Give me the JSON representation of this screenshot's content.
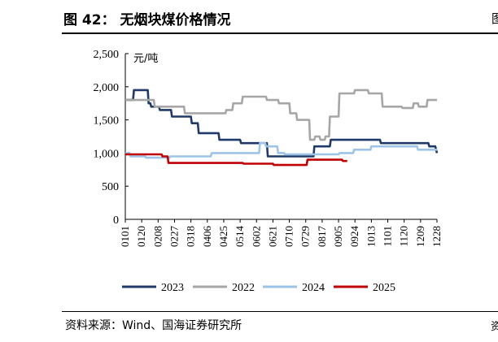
{
  "figure": {
    "title": "图 42：   无烟块煤价格情况",
    "source": "资料来源：Wind、国海证券研究所",
    "edge_mark_top": "图",
    "edge_mark_bottom": "资"
  },
  "chart_data": {
    "type": "line",
    "ylabel": "元/吨",
    "ylim": [
      0,
      2500
    ],
    "yticks": [
      0,
      500,
      1000,
      1500,
      2000,
      2500
    ],
    "ytick_labels": [
      "0",
      "500",
      "1,000",
      "1,500",
      "2,000",
      "2,500"
    ],
    "grid": false,
    "legend_position": "bottom",
    "xlim": [
      1,
      362
    ],
    "x_tick_labels": [
      "0101",
      "0120",
      "0208",
      "0227",
      "0318",
      "0406",
      "0425",
      "0514",
      "0602",
      "0621",
      "0710",
      "0729",
      "0817",
      "0905",
      "0924",
      "1013",
      "1101",
      "1120",
      "1209",
      "1228"
    ],
    "x_tick_days": [
      1,
      20,
      39,
      58,
      77,
      96,
      115,
      134,
      153,
      172,
      191,
      210,
      229,
      248,
      267,
      286,
      305,
      324,
      343,
      362
    ],
    "series": [
      {
        "name": "2023",
        "color": "#1f3a68",
        "x": [
          1,
          10,
          11,
          27,
          28,
          30,
          31,
          40,
          41,
          54,
          55,
          77,
          78,
          85,
          86,
          109,
          110,
          134,
          135,
          165,
          166,
          183,
          184,
          219,
          220,
          238,
          239,
          296,
          297,
          337,
          338,
          352,
          353,
          360,
          362
        ],
        "y": [
          1800,
          1800,
          1950,
          1950,
          1750,
          1750,
          1700,
          1700,
          1650,
          1650,
          1550,
          1550,
          1450,
          1450,
          1300,
          1300,
          1200,
          1200,
          1150,
          1150,
          950,
          950,
          950,
          950,
          1100,
          1100,
          1200,
          1200,
          1150,
          1150,
          1150,
          1150,
          1100,
          1100,
          1000
        ]
      },
      {
        "name": "2022",
        "color": "#a6a6a6",
        "x": [
          1,
          34,
          35,
          69,
          70,
          117,
          118,
          125,
          126,
          136,
          137,
          164,
          165,
          178,
          179,
          191,
          192,
          199,
          200,
          214,
          215,
          220,
          221,
          226,
          227,
          232,
          233,
          237,
          238,
          248,
          249,
          266,
          267,
          282,
          283,
          298,
          299,
          321,
          322,
          334,
          335,
          340,
          341,
          350,
          351,
          362
        ],
        "y": [
          1800,
          1800,
          1700,
          1700,
          1600,
          1600,
          1650,
          1650,
          1750,
          1750,
          1850,
          1850,
          1800,
          1800,
          1750,
          1750,
          1600,
          1600,
          1500,
          1500,
          1200,
          1200,
          1250,
          1250,
          1200,
          1200,
          1250,
          1250,
          1550,
          1550,
          1900,
          1900,
          1950,
          1950,
          1900,
          1900,
          1700,
          1700,
          1680,
          1680,
          1750,
          1750,
          1700,
          1700,
          1800,
          1800
        ]
      },
      {
        "name": "2024",
        "color": "#9dc3e6",
        "x": [
          1,
          6,
          7,
          24,
          25,
          52,
          53,
          100,
          101,
          136,
          137,
          156,
          157,
          163,
          164,
          177,
          178,
          185,
          186,
          248,
          249,
          265,
          266,
          285,
          286,
          339,
          340,
          362
        ],
        "y": [
          1000,
          1000,
          950,
          950,
          930,
          930,
          950,
          950,
          1000,
          1000,
          1000,
          1000,
          1150,
          1150,
          1100,
          1100,
          1000,
          1000,
          980,
          980,
          1000,
          1000,
          1050,
          1050,
          1100,
          1100,
          1050,
          1050
        ]
      },
      {
        "name": "2025",
        "color": "#c00000",
        "x": [
          1,
          43,
          44,
          50,
          51,
          137,
          138,
          172,
          173,
          211,
          212,
          252,
          253,
          258
        ],
        "y": [
          980,
          980,
          950,
          950,
          850,
          850,
          840,
          840,
          820,
          820,
          900,
          900,
          880,
          880
        ]
      }
    ]
  }
}
